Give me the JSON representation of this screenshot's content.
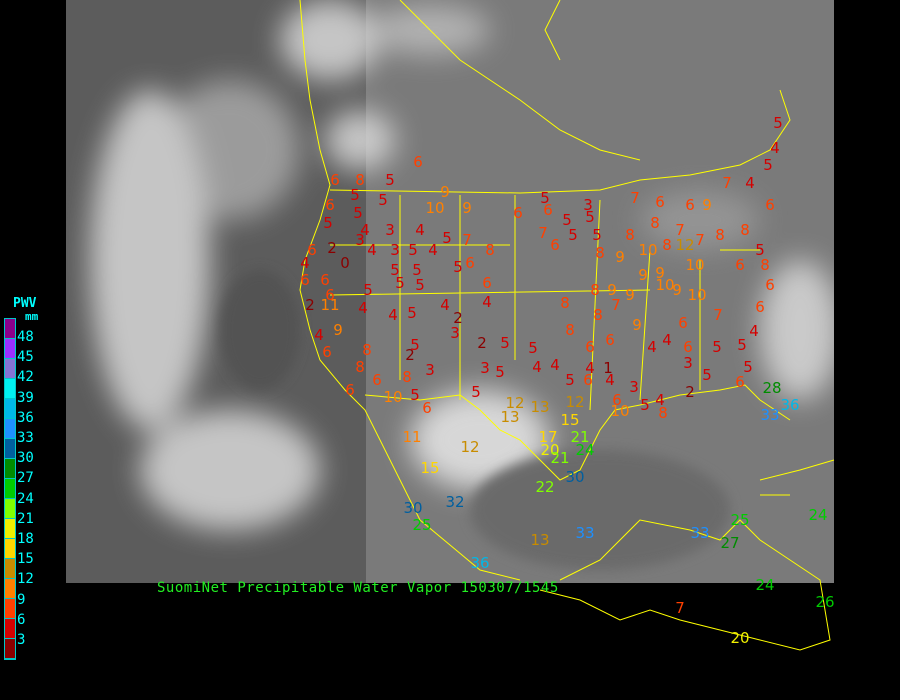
{
  "title": "SuomiNet Precipitable Water Vapor 150307/1545",
  "legend": {
    "title": "PWV",
    "unit": "mm",
    "labels": [
      "48",
      "45",
      "42",
      "39",
      "36",
      "33",
      "30",
      "27",
      "24",
      "21",
      "18",
      "15",
      "12",
      "9",
      "6",
      "3"
    ],
    "colors": [
      "#8b008b",
      "#9b30ff",
      "#8474d4",
      "#00f0f0",
      "#00b8e8",
      "#1e90ff",
      "#005f9f",
      "#008c00",
      "#00cc00",
      "#80ff00",
      "#f0f000",
      "#ffd700",
      "#c88c00",
      "#ff8000",
      "#ff4000",
      "#d40000",
      "#8b0000"
    ]
  },
  "colors": {
    "border": "#ffff00",
    "title": "#22ee22",
    "legend_text": "#00ffff",
    "background": "#000000"
  },
  "stations": [
    "6",
    "6",
    "8",
    "5",
    "5",
    "5",
    "6",
    "9",
    "10",
    "9",
    "6",
    "5",
    "6",
    "5",
    "3",
    "5",
    "7",
    "6",
    "6",
    "9",
    "7",
    "4",
    "5",
    "5",
    "4",
    "6",
    "5",
    "4",
    "3",
    "4",
    "5",
    "5",
    "7",
    "8",
    "6",
    "7",
    "6",
    "5",
    "5",
    "8",
    "8",
    "7",
    "7",
    "8",
    "8",
    "5",
    "6",
    "2",
    "3",
    "4",
    "3",
    "5",
    "4",
    "4",
    "0",
    "5",
    "5",
    "8",
    "9",
    "10",
    "8",
    "12",
    "10",
    "6",
    "8",
    "6",
    "6",
    "5",
    "5",
    "5",
    "6",
    "9",
    "9",
    "10",
    "6",
    "6",
    "5",
    "4",
    "4",
    "8",
    "8",
    "9",
    "9",
    "9",
    "10",
    "2",
    "11",
    "4",
    "4",
    "5",
    "2",
    "3",
    "8",
    "8",
    "7",
    "9",
    "6",
    "7",
    "6",
    "9",
    "4",
    "6",
    "8",
    "5",
    "2",
    "2",
    "5",
    "5",
    "6",
    "6",
    "4",
    "4",
    "6",
    "5",
    "5",
    "4",
    "8",
    "3",
    "3",
    "5",
    "4",
    "4",
    "4",
    "1",
    "5",
    "6",
    "4",
    "3",
    "3",
    "5",
    "5",
    "6",
    "6",
    "8",
    "5",
    "10",
    "5",
    "6",
    "12",
    "13",
    "12",
    "10",
    "5",
    "4",
    "8",
    "2",
    "6",
    "6",
    "13",
    "15",
    "11",
    "12",
    "17",
    "21",
    "20",
    "21",
    "24",
    "22",
    "30",
    "15",
    "32",
    "30",
    "25",
    "13",
    "33",
    "36",
    "33",
    "25",
    "27",
    "24",
    "24",
    "26",
    "7",
    "20",
    "28",
    "36",
    "33"
  ]
}
